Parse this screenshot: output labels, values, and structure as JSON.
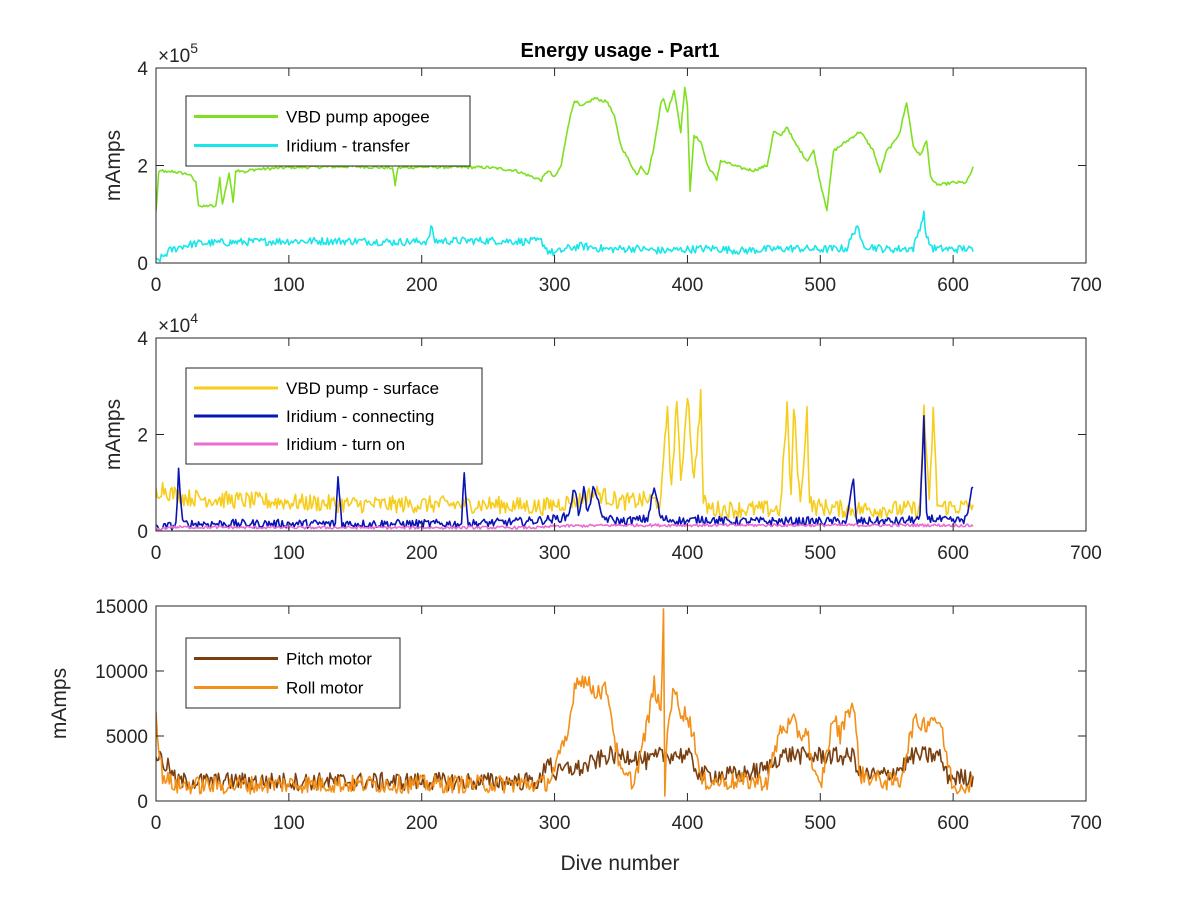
{
  "figure": {
    "title": "Energy usage - Part1",
    "xlabel": "Dive number"
  },
  "chart_data": [
    {
      "type": "line",
      "title": "Energy usage - Part1",
      "xlabel": "",
      "ylabel": "mAmps",
      "xlim": [
        0,
        700
      ],
      "ylim": [
        0,
        400000
      ],
      "xticks": [
        0,
        100,
        200,
        300,
        400,
        500,
        600,
        700
      ],
      "xtick_labels": [
        "0",
        "100",
        "200",
        "300",
        "400",
        "500",
        "600",
        "700"
      ],
      "yticks": [
        0,
        200000,
        400000
      ],
      "ytick_labels": [
        "0",
        "2",
        "4"
      ],
      "exponent_label": "×10",
      "exponent_power": "5",
      "grid": false,
      "legend_position": "top-left",
      "series": [
        {
          "name": "VBD pump apogee",
          "color": "#7ee020",
          "noise": 3000,
          "x": [
            0,
            2,
            5,
            8,
            12,
            18,
            25,
            30,
            32,
            35,
            40,
            45,
            48,
            50,
            55,
            58,
            60,
            65,
            68,
            70,
            75,
            100,
            150,
            178,
            180,
            182,
            200,
            250,
            270,
            280,
            290,
            295,
            300,
            305,
            310,
            315,
            320,
            330,
            340,
            345,
            350,
            360,
            362,
            365,
            370,
            375,
            380,
            382,
            385,
            390,
            395,
            398,
            400,
            402,
            405,
            410,
            415,
            420,
            422,
            425,
            430,
            440,
            450,
            460,
            465,
            470,
            475,
            480,
            490,
            495,
            500,
            505,
            510,
            520,
            530,
            540,
            545,
            550,
            555,
            560,
            565,
            570,
            575,
            580,
            583,
            585,
            590,
            600,
            610,
            615
          ],
          "y": [
            105000,
            185000,
            190000,
            185000,
            188000,
            185000,
            182000,
            165000,
            120000,
            115000,
            118000,
            115000,
            175000,
            120000,
            185000,
            125000,
            190000,
            190000,
            185000,
            190000,
            192000,
            196000,
            198000,
            195000,
            160000,
            195000,
            197000,
            196000,
            190000,
            180000,
            170000,
            190000,
            175000,
            200000,
            280000,
            335000,
            320000,
            338000,
            330000,
            300000,
            240000,
            190000,
            180000,
            200000,
            180000,
            240000,
            330000,
            335000,
            310000,
            355000,
            270000,
            360000,
            320000,
            150000,
            260000,
            250000,
            200000,
            180000,
            170000,
            210000,
            205000,
            195000,
            190000,
            200000,
            270000,
            260000,
            280000,
            250000,
            210000,
            230000,
            165000,
            110000,
            230000,
            250000,
            270000,
            230000,
            185000,
            230000,
            245000,
            270000,
            330000,
            240000,
            220000,
            250000,
            180000,
            165000,
            160000,
            165000,
            165000,
            195000
          ]
        },
        {
          "name": "Iridium - transfer",
          "color": "#18e6ea",
          "noise": 8000,
          "x": [
            0,
            5,
            10,
            20,
            30,
            50,
            80,
            100,
            150,
            180,
            200,
            205,
            207,
            210,
            250,
            280,
            290,
            295,
            300,
            310,
            320,
            340,
            360,
            380,
            400,
            420,
            440,
            460,
            480,
            500,
            520,
            528,
            530,
            535,
            550,
            570,
            578,
            580,
            585,
            600,
            610,
            615
          ],
          "y": [
            3000,
            12000,
            25000,
            35000,
            40000,
            42000,
            44000,
            45000,
            45000,
            43000,
            44000,
            45000,
            75000,
            45000,
            46000,
            44000,
            45000,
            25000,
            20000,
            30000,
            35000,
            28000,
            30000,
            25000,
            28000,
            30000,
            25000,
            28000,
            30000,
            28000,
            30000,
            80000,
            45000,
            35000,
            28000,
            30000,
            100000,
            50000,
            30000,
            28000,
            30000,
            25000
          ]
        }
      ]
    },
    {
      "type": "line",
      "title": "",
      "xlabel": "",
      "ylabel": "mAmps",
      "xlim": [
        0,
        700
      ],
      "ylim": [
        0,
        40000
      ],
      "xticks": [
        0,
        100,
        200,
        300,
        400,
        500,
        600,
        700
      ],
      "xtick_labels": [
        "0",
        "100",
        "200",
        "300",
        "400",
        "500",
        "600",
        "700"
      ],
      "yticks": [
        0,
        20000,
        40000
      ],
      "ytick_labels": [
        "0",
        "2",
        "4"
      ],
      "exponent_label": "×10",
      "exponent_power": "4",
      "grid": false,
      "legend_position": "top-left",
      "series": [
        {
          "name": "VBD pump - surface",
          "color": "#f7cd1c",
          "noise": 1800,
          "x": [
            0,
            5,
            10,
            20,
            50,
            100,
            150,
            200,
            250,
            290,
            300,
            310,
            320,
            330,
            340,
            350,
            370,
            380,
            385,
            388,
            392,
            395,
            400,
            405,
            410,
            412,
            415,
            420,
            440,
            460,
            470,
            475,
            478,
            480,
            485,
            490,
            492,
            495,
            500,
            520,
            540,
            560,
            570,
            575,
            578,
            582,
            585,
            588,
            590,
            600,
            610,
            615
          ],
          "y": [
            8000,
            9000,
            8000,
            7000,
            6500,
            6000,
            5500,
            5500,
            5500,
            5000,
            5500,
            6000,
            6500,
            8000,
            7000,
            6000,
            6500,
            6000,
            26000,
            8000,
            28000,
            9000,
            29000,
            10000,
            28000,
            6000,
            5000,
            4500,
            4500,
            4500,
            4500,
            26000,
            6000,
            26000,
            5000,
            25000,
            6000,
            5000,
            5000,
            4500,
            4500,
            4500,
            4500,
            4500,
            26000,
            5000,
            25000,
            6000,
            5000,
            5000,
            5000,
            5500
          ]
        },
        {
          "name": "Iridium - connecting",
          "color": "#0a14b4",
          "noise": 900,
          "x": [
            0,
            10,
            15,
            17,
            20,
            40,
            60,
            80,
            100,
            135,
            137,
            140,
            170,
            200,
            230,
            232,
            235,
            280,
            300,
            310,
            315,
            318,
            322,
            325,
            330,
            335,
            340,
            350,
            370,
            375,
            380,
            400,
            410,
            430,
            480,
            500,
            520,
            525,
            527,
            530,
            560,
            575,
            578,
            580,
            585,
            600,
            610,
            615
          ],
          "y": [
            500,
            1000,
            1200,
            12500,
            1500,
            1500,
            1500,
            1500,
            1500,
            1500,
            11000,
            1500,
            1500,
            1500,
            1500,
            12000,
            1500,
            2000,
            2500,
            3000,
            9000,
            3500,
            9000,
            3500,
            9500,
            3000,
            2500,
            2000,
            2500,
            9000,
            2500,
            2000,
            2500,
            2000,
            2000,
            2000,
            2000,
            11000,
            2000,
            2000,
            2000,
            2500,
            23000,
            3000,
            2500,
            2000,
            2500,
            9500
          ]
        },
        {
          "name": "Iridium - turn on",
          "color": "#e86ed2",
          "noise": 300,
          "x": [
            0,
            10,
            100,
            200,
            290,
            300,
            350,
            400,
            450,
            500,
            550,
            600,
            615
          ],
          "y": [
            200,
            800,
            700,
            700,
            700,
            1000,
            1200,
            1200,
            1200,
            1200,
            1200,
            1200,
            1100
          ]
        }
      ]
    },
    {
      "type": "line",
      "title": "",
      "xlabel": "Dive number",
      "ylabel": "mAmps",
      "xlim": [
        0,
        700
      ],
      "ylim": [
        0,
        15000
      ],
      "xticks": [
        0,
        100,
        200,
        300,
        400,
        500,
        600,
        700
      ],
      "xtick_labels": [
        "0",
        "100",
        "200",
        "300",
        "400",
        "500",
        "600",
        "700"
      ],
      "yticks": [
        0,
        5000,
        10000,
        15000
      ],
      "ytick_labels": [
        "0",
        "5000",
        "10000",
        "15000"
      ],
      "exponent_label": "",
      "exponent_power": "",
      "grid": false,
      "legend_position": "top-left",
      "series": [
        {
          "name": "Pitch motor",
          "color": "#7a3f10",
          "noise": 700,
          "x": [
            0,
            2,
            5,
            10,
            15,
            50,
            100,
            150,
            200,
            250,
            290,
            295,
            300,
            310,
            320,
            340,
            360,
            370,
            380,
            390,
            400,
            410,
            440,
            460,
            470,
            480,
            490,
            500,
            520,
            525,
            530,
            550,
            560,
            570,
            580,
            590,
            595,
            600,
            615
          ],
          "y": [
            3500,
            3500,
            3000,
            2500,
            1500,
            1500,
            1500,
            1500,
            1500,
            1500,
            1500,
            3500,
            2000,
            2500,
            2500,
            3500,
            3500,
            3000,
            3500,
            3600,
            3500,
            2000,
            2000,
            2500,
            3500,
            3600,
            3400,
            3500,
            3400,
            3500,
            2000,
            2000,
            2500,
            3500,
            3500,
            3500,
            2000,
            1800,
            1800
          ]
        },
        {
          "name": "Roll motor",
          "color": "#f39019",
          "noise": 700,
          "x": [
            0,
            2,
            5,
            10,
            15,
            50,
            100,
            150,
            200,
            250,
            290,
            295,
            300,
            310,
            315,
            320,
            330,
            340,
            345,
            350,
            360,
            370,
            375,
            380,
            382,
            383,
            385,
            390,
            395,
            400,
            405,
            410,
            420,
            440,
            460,
            470,
            480,
            485,
            490,
            495,
            500,
            510,
            515,
            520,
            525,
            530,
            550,
            560,
            570,
            580,
            585,
            590,
            600,
            615
          ],
          "y": [
            7300,
            4000,
            2000,
            1500,
            1200,
            1200,
            1300,
            1300,
            1300,
            1300,
            1300,
            1500,
            2500,
            5000,
            9000,
            9500,
            8500,
            8500,
            5000,
            2000,
            1500,
            6000,
            9000,
            6500,
            14800,
            500,
            6000,
            8500,
            7000,
            6500,
            5000,
            1500,
            1500,
            1500,
            1500,
            5500,
            6000,
            5000,
            5500,
            2000,
            1000,
            6500,
            5000,
            7000,
            7300,
            2000,
            1500,
            1500,
            6000,
            6000,
            6500,
            6000,
            1000,
            1500
          ]
        }
      ]
    }
  ]
}
